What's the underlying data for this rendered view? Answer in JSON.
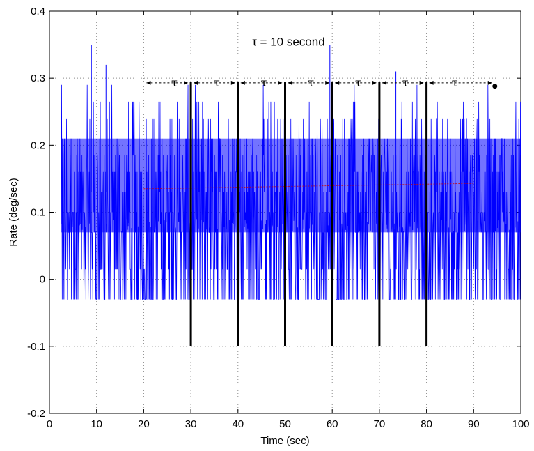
{
  "chart_data": {
    "type": "line",
    "xlabel": "Time (sec)",
    "ylabel": "Rate (deg/sec)",
    "xlim": [
      0,
      100
    ],
    "ylim": [
      -0.2,
      0.4
    ],
    "grid": true,
    "x_ticks": [
      "0",
      "10",
      "20",
      "30",
      "40",
      "50",
      "60",
      "70",
      "80",
      "90",
      "100"
    ],
    "y_ticks": [
      "-0.2",
      "-0.1",
      "0",
      "0.1",
      "0.2",
      "0.3",
      "0.4"
    ],
    "signal": {
      "color": "#0000ff",
      "x_range": [
        2.5,
        100
      ],
      "levels": [
        -0.03,
        0.015,
        0.07,
        0.1,
        0.13,
        0.16,
        0.185,
        0.21,
        0.24,
        0.265,
        0.29
      ],
      "dense_band": [
        0.07,
        0.21
      ],
      "peaks": [
        {
          "x": 8.9,
          "y": 0.35
        },
        {
          "x": 12.0,
          "y": 0.32
        },
        {
          "x": 59.5,
          "y": 0.35
        },
        {
          "x": 73.5,
          "y": 0.31
        }
      ]
    },
    "mean_line": {
      "color": "#cc0000",
      "x": [
        20,
        90
      ],
      "y": [
        0.135,
        0.143
      ]
    },
    "markers": {
      "x": [
        30,
        40,
        50,
        60,
        70,
        80
      ],
      "y_low": -0.1,
      "y_high": 0.295,
      "color": "#000000"
    },
    "annotations": {
      "title": "τ  = 10 second",
      "tau_symbol": "τ",
      "tau_positions": [
        26.5,
        35.5,
        45.5,
        55.5,
        65.5,
        75.5,
        86.0
      ],
      "tau_row_y": 0.293,
      "end_dot": {
        "x": 94.5,
        "y": 0.288
      }
    }
  }
}
